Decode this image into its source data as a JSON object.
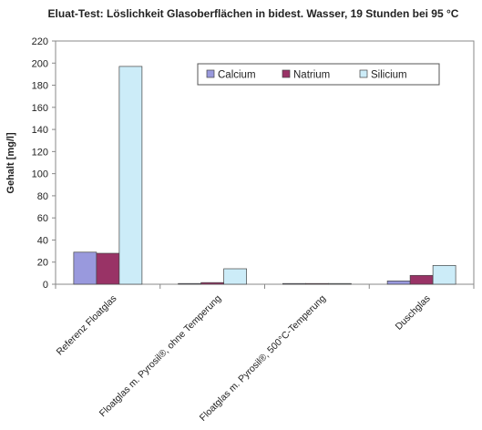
{
  "chart_data": {
    "type": "bar",
    "title": "Eluat-Test: Löslichkeit Glasoberflächen in bidest. Wasser, 19 Stunden bei 95 °C",
    "xlabel": "",
    "ylabel": "Gehalt [mg/l]",
    "ylim": [
      0,
      220
    ],
    "yticks": [
      "0",
      "20",
      "40",
      "60",
      "80",
      "100",
      "120",
      "140",
      "160",
      "180",
      "200",
      "220"
    ],
    "grid": false,
    "legend_position": "top-right",
    "categories": [
      "Referenz Floatglas",
      "Floatglas m. Pyrosil®, ohne Temperung",
      "Floatglas m. Pyrosil®, 500°C-Temperung",
      "Duschglas"
    ],
    "series": [
      {
        "name": "Calcium",
        "color": "#9999dd",
        "values": [
          29,
          0.5,
          0.3,
          3
        ]
      },
      {
        "name": "Natrium",
        "color": "#993366",
        "values": [
          28,
          1.5,
          0.3,
          8
        ]
      },
      {
        "name": "Silicium",
        "color": "#ccecf8",
        "values": [
          197,
          14,
          0.3,
          17
        ]
      }
    ]
  }
}
